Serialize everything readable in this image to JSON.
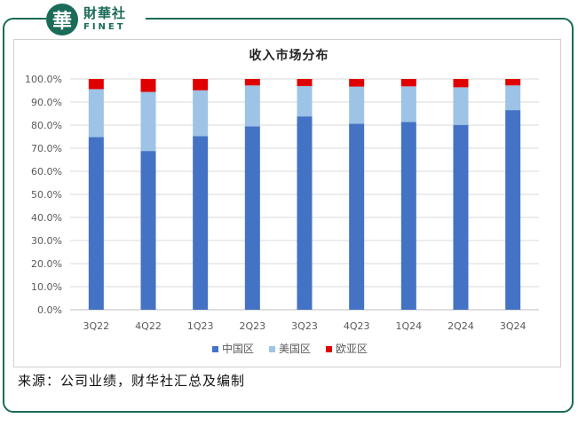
{
  "brand": {
    "mark": "華",
    "name_cn": "財華社",
    "name_en": "FINET",
    "color": "#1a6b57"
  },
  "source_text": "来源：公司业绩，财华社汇总及编制",
  "chart_data": {
    "type": "bar",
    "stacked": true,
    "title": "收入市场分布",
    "categories": [
      "3Q22",
      "4Q22",
      "1Q23",
      "2Q23",
      "3Q23",
      "4Q23",
      "1Q24",
      "2Q24",
      "3Q24"
    ],
    "series": [
      {
        "name": "中国区",
        "color": "#4472c4",
        "values": [
          74.8,
          68.8,
          75.2,
          79.5,
          83.8,
          80.6,
          81.4,
          80.1,
          86.5
        ]
      },
      {
        "name": "美国区",
        "color": "#9dc3e6",
        "values": [
          20.8,
          25.6,
          19.9,
          17.7,
          13.1,
          16.1,
          15.4,
          16.3,
          10.7
        ]
      },
      {
        "name": "欧亚区",
        "color": "#e00000",
        "values": [
          4.4,
          5.6,
          4.9,
          2.8,
          3.1,
          3.3,
          3.2,
          3.6,
          2.8
        ]
      }
    ],
    "yticks": [
      "0.0%",
      "10.0%",
      "20.0%",
      "30.0%",
      "40.0%",
      "50.0%",
      "60.0%",
      "70.0%",
      "80.0%",
      "90.0%",
      "100.0%"
    ],
    "ylim": [
      0,
      100
    ],
    "grid": true,
    "legend_position": "bottom"
  }
}
